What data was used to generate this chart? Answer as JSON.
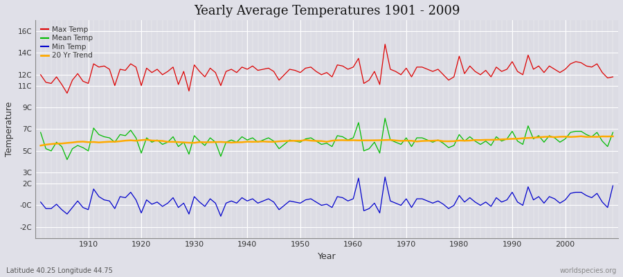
{
  "title": "Yearly Average Temperatures 1901 - 2009",
  "xlabel": "Year",
  "ylabel": "Temperature",
  "subtitle_left": "Latitude 40.25 Longitude 44.75",
  "subtitle_right": "worldspecies.org",
  "years": [
    1901,
    1902,
    1903,
    1904,
    1905,
    1906,
    1907,
    1908,
    1909,
    1910,
    1911,
    1912,
    1913,
    1914,
    1915,
    1916,
    1917,
    1918,
    1919,
    1920,
    1921,
    1922,
    1923,
    1924,
    1925,
    1926,
    1927,
    1928,
    1929,
    1930,
    1931,
    1932,
    1933,
    1934,
    1935,
    1936,
    1937,
    1938,
    1939,
    1940,
    1941,
    1942,
    1943,
    1944,
    1945,
    1946,
    1947,
    1948,
    1949,
    1950,
    1951,
    1952,
    1953,
    1954,
    1955,
    1956,
    1957,
    1958,
    1959,
    1960,
    1961,
    1962,
    1963,
    1964,
    1965,
    1966,
    1967,
    1968,
    1969,
    1970,
    1971,
    1972,
    1973,
    1974,
    1975,
    1976,
    1977,
    1978,
    1979,
    1980,
    1981,
    1982,
    1983,
    1984,
    1985,
    1986,
    1987,
    1988,
    1989,
    1990,
    1991,
    1992,
    1993,
    1994,
    1995,
    1996,
    1997,
    1998,
    1999,
    2000,
    2001,
    2002,
    2003,
    2004,
    2005,
    2006,
    2007,
    2008,
    2009
  ],
  "max_temp": [
    12.0,
    11.3,
    11.2,
    11.8,
    11.1,
    10.3,
    11.5,
    12.1,
    11.4,
    11.2,
    13.0,
    12.7,
    12.8,
    12.5,
    11.0,
    12.5,
    12.4,
    13.0,
    12.7,
    11.0,
    12.6,
    12.2,
    12.5,
    12.0,
    12.3,
    12.7,
    11.1,
    12.3,
    10.5,
    12.9,
    12.3,
    11.8,
    12.6,
    12.2,
    11.0,
    12.3,
    12.5,
    12.2,
    12.7,
    12.5,
    12.8,
    12.4,
    12.5,
    12.6,
    12.3,
    11.5,
    12.0,
    12.5,
    12.4,
    12.2,
    12.6,
    12.7,
    12.3,
    12.0,
    12.2,
    11.8,
    12.9,
    12.8,
    12.5,
    12.7,
    13.5,
    11.2,
    11.5,
    12.3,
    11.1,
    14.8,
    12.5,
    12.3,
    12.0,
    12.6,
    11.8,
    12.7,
    12.7,
    12.5,
    12.3,
    12.5,
    12.0,
    11.5,
    11.8,
    13.7,
    12.1,
    12.8,
    12.3,
    12.0,
    12.4,
    11.8,
    12.7,
    12.3,
    12.5,
    13.2,
    12.3,
    12.0,
    13.8,
    12.5,
    12.8,
    12.2,
    12.8,
    12.5,
    12.2,
    12.5,
    13.0,
    13.2,
    13.1,
    12.8,
    12.7,
    13.0,
    12.2,
    11.7,
    11.8
  ],
  "mean_temp": [
    6.7,
    5.2,
    5.0,
    5.8,
    5.4,
    4.2,
    5.2,
    5.5,
    5.3,
    5.0,
    7.1,
    6.5,
    6.3,
    6.2,
    5.8,
    6.5,
    6.4,
    6.9,
    6.2,
    4.8,
    6.2,
    5.8,
    6.0,
    5.6,
    5.8,
    6.3,
    5.4,
    5.8,
    4.7,
    6.4,
    5.9,
    5.5,
    6.2,
    5.8,
    4.5,
    5.8,
    6.0,
    5.8,
    6.3,
    6.0,
    6.2,
    5.8,
    6.0,
    6.2,
    5.9,
    5.2,
    5.6,
    6.0,
    5.9,
    5.8,
    6.1,
    6.2,
    5.9,
    5.6,
    5.7,
    5.4,
    6.4,
    6.3,
    6.0,
    6.2,
    7.6,
    5.0,
    5.2,
    5.8,
    4.8,
    8.0,
    6.0,
    5.8,
    5.6,
    6.2,
    5.4,
    6.2,
    6.2,
    6.0,
    5.8,
    6.0,
    5.7,
    5.3,
    5.5,
    6.5,
    5.9,
    6.3,
    5.9,
    5.6,
    5.9,
    5.5,
    6.3,
    5.9,
    6.1,
    6.8,
    5.9,
    5.6,
    7.3,
    6.1,
    6.4,
    5.8,
    6.4,
    6.2,
    5.8,
    6.1,
    6.7,
    6.8,
    6.8,
    6.5,
    6.3,
    6.7,
    5.9,
    5.4,
    6.7
  ],
  "min_temp": [
    0.3,
    -0.3,
    -0.3,
    0.1,
    -0.4,
    -0.8,
    -0.2,
    0.4,
    -0.2,
    -0.4,
    1.5,
    0.8,
    0.5,
    0.4,
    -0.3,
    0.8,
    0.7,
    1.2,
    0.5,
    -0.7,
    0.5,
    0.1,
    0.3,
    -0.1,
    0.2,
    0.7,
    -0.2,
    0.2,
    -0.8,
    0.8,
    0.3,
    -0.1,
    0.6,
    0.2,
    -1.0,
    0.2,
    0.4,
    0.2,
    0.7,
    0.4,
    0.6,
    0.2,
    0.4,
    0.6,
    0.3,
    -0.4,
    0.0,
    0.4,
    0.3,
    0.2,
    0.5,
    0.6,
    0.3,
    0.0,
    0.1,
    -0.2,
    0.8,
    0.7,
    0.4,
    0.6,
    2.5,
    -0.5,
    -0.3,
    0.2,
    -0.7,
    2.6,
    0.4,
    0.2,
    0.0,
    0.6,
    -0.2,
    0.6,
    0.6,
    0.4,
    0.2,
    0.4,
    0.1,
    -0.3,
    0.0,
    0.9,
    0.3,
    0.7,
    0.3,
    0.0,
    0.3,
    -0.1,
    0.7,
    0.3,
    0.5,
    1.2,
    0.3,
    0.0,
    1.7,
    0.5,
    0.8,
    0.2,
    0.8,
    0.6,
    0.2,
    0.5,
    1.1,
    1.2,
    1.2,
    0.9,
    0.7,
    1.1,
    0.3,
    -0.2,
    1.8
  ],
  "fig_bg_color": "#e0e0e8",
  "plot_bg_color": "#dcdce4",
  "grid_color": "#ffffff",
  "max_color": "#dd0000",
  "mean_color": "#00bb00",
  "min_color": "#0000cc",
  "trend_color": "#ffaa00",
  "ylim": [
    -3,
    17
  ],
  "xlim": [
    1900,
    2010
  ],
  "xticks": [
    1910,
    1920,
    1930,
    1940,
    1950,
    1960,
    1970,
    1980,
    1990,
    2000
  ],
  "ytick_vals": [
    -2,
    0,
    2,
    3,
    5,
    7,
    9,
    11,
    12,
    14,
    16
  ],
  "ytick_labels": [
    "-2C",
    "-0C",
    "2C",
    "3C",
    "5C",
    "7C",
    "9C",
    "11C",
    "12C",
    "14C",
    "16C"
  ]
}
